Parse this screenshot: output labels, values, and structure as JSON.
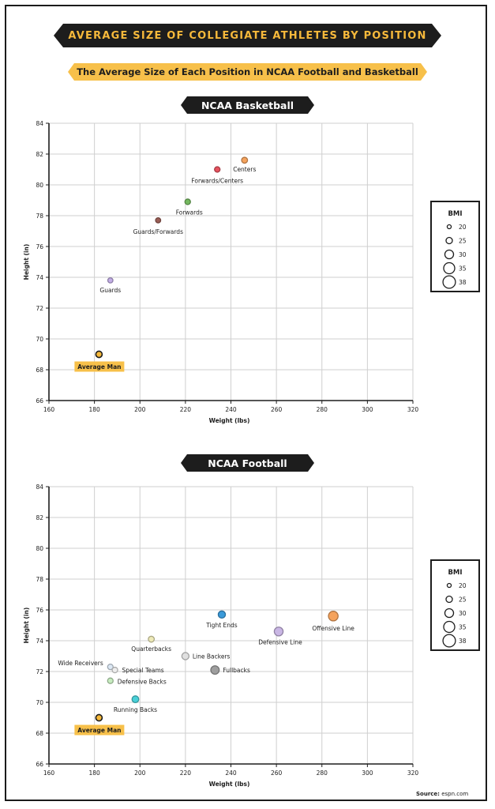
{
  "header": {
    "title": "AVERAGE SIZE OF COLLEGIATE ATHLETES BY POSITION",
    "subtitle": "The Average Size of Each Position in NCAA Football and Basketball"
  },
  "source": {
    "label": "Source:",
    "value": "espn.com"
  },
  "legend": {
    "title": "BMI",
    "items": [
      "20",
      "25",
      "30",
      "35",
      "38"
    ]
  },
  "chart_data": [
    {
      "type": "scatter",
      "title": "NCAA Basketball",
      "xlabel": "Weight (lbs)",
      "ylabel": "Height (in)",
      "xlim": [
        160,
        320
      ],
      "ylim": [
        66,
        84
      ],
      "xticks": [
        "160",
        "180",
        "200",
        "220",
        "240",
        "260",
        "280",
        "300",
        "320"
      ],
      "yticks": [
        "66",
        "68",
        "70",
        "72",
        "74",
        "76",
        "78",
        "80",
        "82",
        "84"
      ],
      "grid": true,
      "points": [
        {
          "label": "Centers",
          "x": 246,
          "y": 81.6,
          "bmi": 26,
          "color": "#f5a35d"
        },
        {
          "label": "Forwards/Centers",
          "x": 234,
          "y": 81.0,
          "bmi": 25,
          "color": "#e6525e"
        },
        {
          "label": "Forwards",
          "x": 221,
          "y": 78.9,
          "bmi": 25,
          "color": "#74b85f"
        },
        {
          "label": "Guards/Forwards",
          "x": 208,
          "y": 77.7,
          "bmi": 24,
          "color": "#9a5e56"
        },
        {
          "label": "Guards",
          "x": 187,
          "y": 73.8,
          "bmi": 24,
          "color": "#c3aee6"
        },
        {
          "label": "Average Man",
          "x": 182,
          "y": 69.0,
          "bmi": 27,
          "color": "#f6b93b"
        }
      ]
    },
    {
      "type": "scatter",
      "title": "NCAA Football",
      "xlabel": "Weight (lbs)",
      "ylabel": "Height (in)",
      "xlim": [
        160,
        320
      ],
      "ylim": [
        66,
        84
      ],
      "xticks": [
        "160",
        "180",
        "200",
        "220",
        "240",
        "260",
        "280",
        "300",
        "320"
      ],
      "yticks": [
        "66",
        "68",
        "70",
        "72",
        "74",
        "76",
        "78",
        "80",
        "82",
        "84"
      ],
      "grid": true,
      "points": [
        {
          "label": "Offensive Line",
          "x": 285,
          "y": 75.6,
          "bmi": 35,
          "color": "#f5a35d"
        },
        {
          "label": "Defensive Line",
          "x": 261,
          "y": 74.6,
          "bmi": 33,
          "color": "#c9b6e4"
        },
        {
          "label": "Tight Ends",
          "x": 236,
          "y": 75.7,
          "bmi": 29,
          "color": "#3a9ad9"
        },
        {
          "label": "Fullbacks",
          "x": 233,
          "y": 72.1,
          "bmi": 32,
          "color": "#9e9e9e"
        },
        {
          "label": "Line Backers",
          "x": 220,
          "y": 73.0,
          "bmi": 29,
          "color": "#e0e0e0"
        },
        {
          "label": "Quarterbacks",
          "x": 205,
          "y": 74.1,
          "bmi": 26,
          "color": "#eeeab8"
        },
        {
          "label": "Running Backs",
          "x": 198,
          "y": 70.2,
          "bmi": 28,
          "color": "#49d0d8"
        },
        {
          "label": "Wide Receivers",
          "x": 187,
          "y": 72.3,
          "bmi": 25,
          "color": "#dce8f4"
        },
        {
          "label": "Special Teams",
          "x": 189,
          "y": 72.1,
          "bmi": 25,
          "color": "#eeeeee"
        },
        {
          "label": "Defensive Backs",
          "x": 187,
          "y": 71.4,
          "bmi": 25,
          "color": "#c7ecbf"
        },
        {
          "label": "Average Man",
          "x": 182,
          "y": 69.0,
          "bmi": 27,
          "color": "#f6b93b"
        }
      ]
    }
  ]
}
